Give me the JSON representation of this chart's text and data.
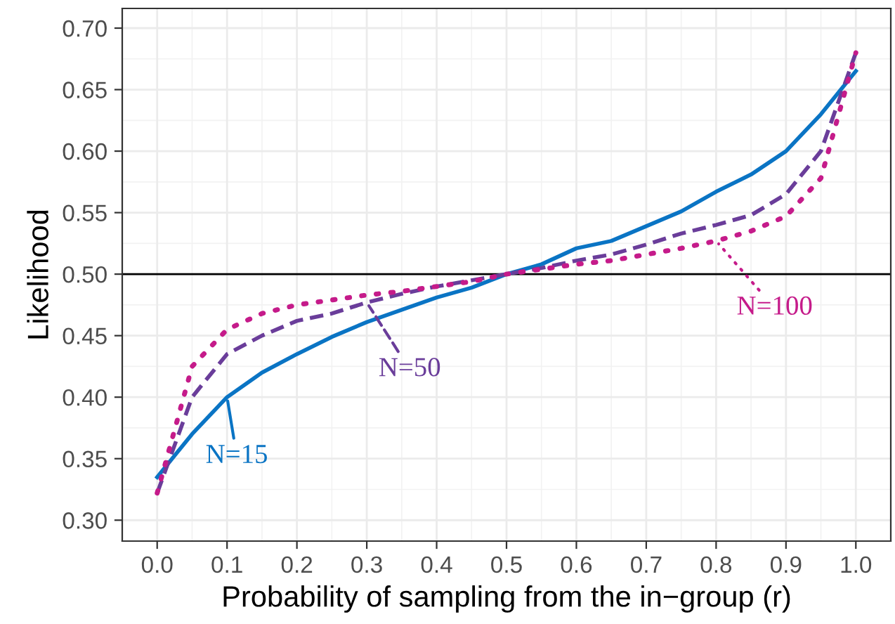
{
  "chart_data": {
    "type": "line",
    "xlabel": "Probability of sampling from the in−group (r)",
    "ylabel": "Likelihood",
    "x": [
      0,
      0.05,
      0.1,
      0.15,
      0.2,
      0.25,
      0.3,
      0.35,
      0.4,
      0.45,
      0.5,
      0.55,
      0.6,
      0.65,
      0.7,
      0.75,
      0.8,
      0.85,
      0.9,
      0.95,
      1.0
    ],
    "series": [
      {
        "name": "N=15",
        "color": "#0a74c4",
        "line_style": "solid",
        "values": [
          0.335,
          0.37,
          0.4,
          0.42,
          0.435,
          0.449,
          0.461,
          0.471,
          0.481,
          0.489,
          0.5,
          0.508,
          0.521,
          0.527,
          0.539,
          0.551,
          0.567,
          0.581,
          0.6,
          0.63,
          0.665
        ]
      },
      {
        "name": "N=50",
        "color": "#6a3d9a",
        "line_style": "dashed",
        "values": [
          0.322,
          0.4,
          0.435,
          0.45,
          0.462,
          0.468,
          0.477,
          0.484,
          0.49,
          0.495,
          0.5,
          0.505,
          0.511,
          0.516,
          0.524,
          0.533,
          0.54,
          0.548,
          0.565,
          0.6,
          0.68
        ]
      },
      {
        "name": "N=100",
        "color": "#c51b8a",
        "line_style": "dotted",
        "values": [
          0.322,
          0.425,
          0.455,
          0.468,
          0.475,
          0.479,
          0.483,
          0.486,
          0.49,
          0.494,
          0.5,
          0.504,
          0.508,
          0.511,
          0.516,
          0.521,
          0.527,
          0.535,
          0.547,
          0.578,
          0.68
        ]
      }
    ],
    "ref_lines": [
      {
        "axis": "y",
        "value": 0.5,
        "color": "#000000"
      }
    ],
    "xlim": [
      -0.05,
      1.05
    ],
    "ylim": [
      0.283,
      0.716
    ],
    "xticks": [
      {
        "value": 0,
        "label": "0.0"
      },
      {
        "value": 0.1,
        "label": "0.1"
      },
      {
        "value": 0.2,
        "label": "0.2"
      },
      {
        "value": 0.3,
        "label": "0.3"
      },
      {
        "value": 0.4,
        "label": "0.4"
      },
      {
        "value": 0.5,
        "label": "0.5"
      },
      {
        "value": 0.6,
        "label": "0.6"
      },
      {
        "value": 0.7,
        "label": "0.7"
      },
      {
        "value": 0.8,
        "label": "0.8"
      },
      {
        "value": 0.9,
        "label": "0.9"
      },
      {
        "value": 1.0,
        "label": "1.0"
      }
    ],
    "yticks": [
      {
        "value": 0.3,
        "label": "0.30"
      },
      {
        "value": 0.35,
        "label": "0.35"
      },
      {
        "value": 0.4,
        "label": "0.40"
      },
      {
        "value": 0.45,
        "label": "0.45"
      },
      {
        "value": 0.5,
        "label": "0.50"
      },
      {
        "value": 0.55,
        "label": "0.55"
      },
      {
        "value": 0.6,
        "label": "0.60"
      },
      {
        "value": 0.65,
        "label": "0.65"
      },
      {
        "value": 0.7,
        "label": "0.70"
      }
    ],
    "grid": true,
    "legend": "bottom",
    "marker": "none"
  }
}
